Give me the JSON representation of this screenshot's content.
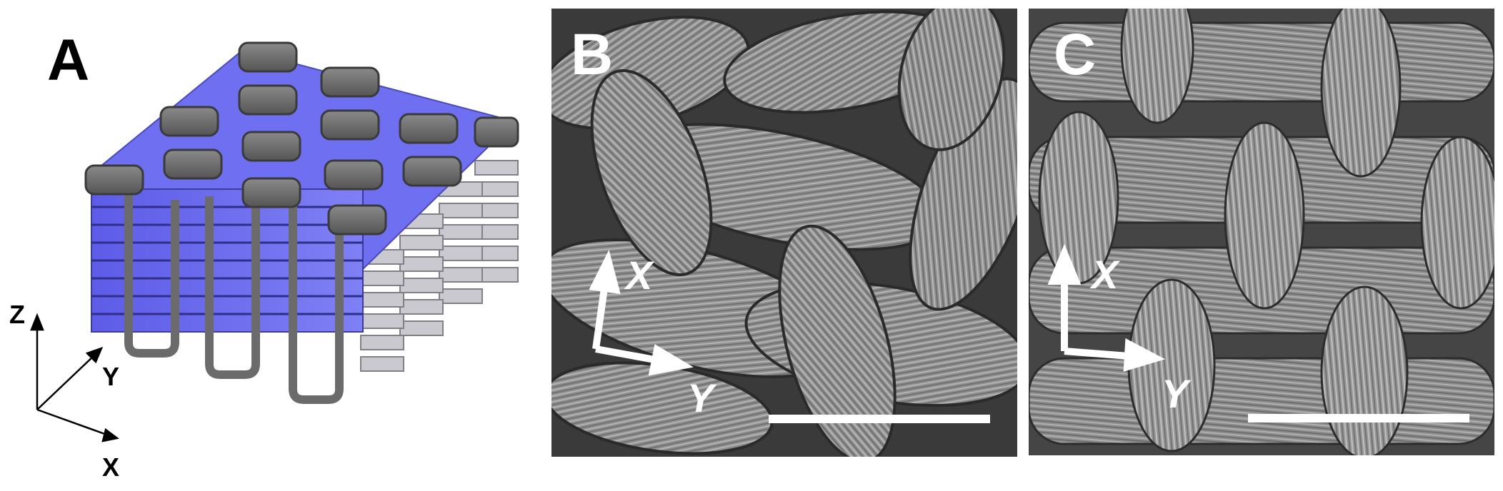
{
  "panels": {
    "a": {
      "label": "A",
      "axes": {
        "z": "Z",
        "y": "Y",
        "x": "X"
      }
    },
    "b": {
      "label": "B",
      "axes": {
        "x": "X",
        "y": "Y"
      }
    },
    "c": {
      "label": "C",
      "axes": {
        "x": "X",
        "y": "Y"
      }
    }
  },
  "colors": {
    "warp_blue": "#6f6ff2",
    "yarn_grey": "#6b6b6b",
    "fill_light": "#c8c8d2",
    "sem_background": "#5a5a5a",
    "sem_fiber": "#9a9a9a",
    "arrow_white": "#ffffff"
  }
}
